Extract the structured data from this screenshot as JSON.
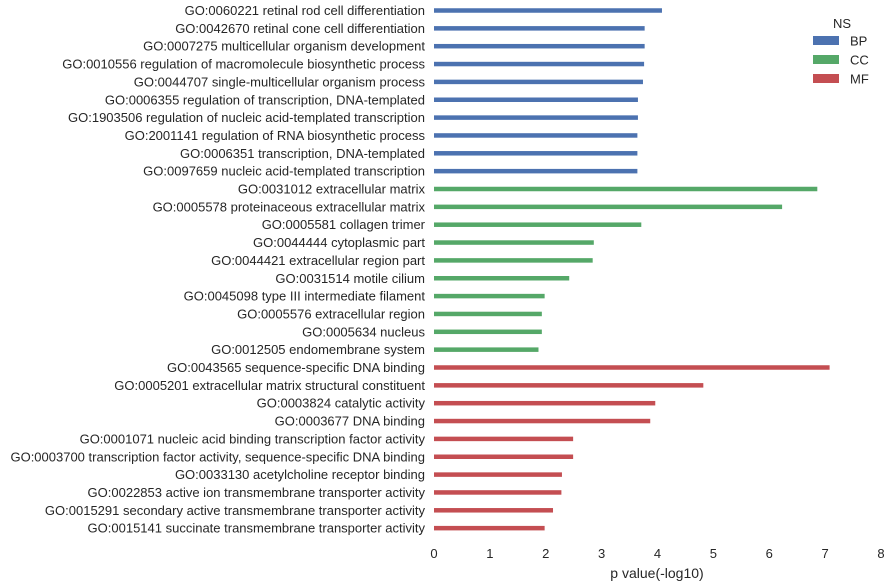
{
  "chart_data": {
    "type": "bar",
    "orientation": "horizontal",
    "xlabel": "p value(-log10)",
    "xlim": [
      0,
      8
    ],
    "xticks": [
      0,
      1,
      2,
      3,
      4,
      5,
      6,
      7,
      8
    ],
    "grid": false,
    "legend": {
      "title": "NS",
      "placement": "top-right",
      "entries": [
        {
          "name": "BP",
          "color": "#4c72b0"
        },
        {
          "name": "CC",
          "color": "#55a868"
        },
        {
          "name": "MF",
          "color": "#c44e52"
        }
      ]
    },
    "bars": [
      {
        "label": "GO:0060221 retinal rod cell differentiation",
        "value": 4.08,
        "ns": "BP"
      },
      {
        "label": "GO:0042670 retinal cone cell differentiation",
        "value": 3.77,
        "ns": "BP"
      },
      {
        "label": "GO:0007275 multicellular organism development",
        "value": 3.77,
        "ns": "BP"
      },
      {
        "label": "GO:0010556 regulation of macromolecule biosynthetic process",
        "value": 3.76,
        "ns": "BP"
      },
      {
        "label": "GO:0044707 single-multicellular organism process",
        "value": 3.74,
        "ns": "BP"
      },
      {
        "label": "GO:0006355 regulation of transcription, DNA-templated",
        "value": 3.65,
        "ns": "BP"
      },
      {
        "label": "GO:1903506 regulation of nucleic acid-templated transcription",
        "value": 3.65,
        "ns": "BP"
      },
      {
        "label": "GO:2001141 regulation of RNA biosynthetic process",
        "value": 3.64,
        "ns": "BP"
      },
      {
        "label": "GO:0006351 transcription, DNA-templated",
        "value": 3.64,
        "ns": "BP"
      },
      {
        "label": "GO:0097659 nucleic acid-templated transcription",
        "value": 3.64,
        "ns": "BP"
      },
      {
        "label": "GO:0031012 extracellular matrix",
        "value": 6.86,
        "ns": "CC"
      },
      {
        "label": "GO:0005578 proteinaceous extracellular matrix",
        "value": 6.23,
        "ns": "CC"
      },
      {
        "label": "GO:0005581 collagen trimer",
        "value": 3.71,
        "ns": "CC"
      },
      {
        "label": "GO:0044444 cytoplasmic part",
        "value": 2.86,
        "ns": "CC"
      },
      {
        "label": "GO:0044421 extracellular region part",
        "value": 2.84,
        "ns": "CC"
      },
      {
        "label": "GO:0031514 motile cilium",
        "value": 2.42,
        "ns": "CC"
      },
      {
        "label": "GO:0045098 type III intermediate filament",
        "value": 1.98,
        "ns": "CC"
      },
      {
        "label": "GO:0005576 extracellular region",
        "value": 1.93,
        "ns": "CC"
      },
      {
        "label": "GO:0005634 nucleus",
        "value": 1.93,
        "ns": "CC"
      },
      {
        "label": "GO:0012505 endomembrane system",
        "value": 1.87,
        "ns": "CC"
      },
      {
        "label": "GO:0043565 sequence-specific DNA binding",
        "value": 7.08,
        "ns": "MF"
      },
      {
        "label": "GO:0005201 extracellular matrix structural constituent",
        "value": 4.82,
        "ns": "MF"
      },
      {
        "label": "GO:0003824 catalytic activity",
        "value": 3.96,
        "ns": "MF"
      },
      {
        "label": "GO:0003677 DNA binding",
        "value": 3.87,
        "ns": "MF"
      },
      {
        "label": "GO:0001071 nucleic acid binding transcription factor activity",
        "value": 2.49,
        "ns": "MF"
      },
      {
        "label": "GO:0003700 transcription factor activity, sequence-specific DNA binding",
        "value": 2.49,
        "ns": "MF"
      },
      {
        "label": "GO:0033130 acetylcholine receptor binding",
        "value": 2.29,
        "ns": "MF"
      },
      {
        "label": "GO:0022853 active ion transmembrane transporter activity",
        "value": 2.28,
        "ns": "MF"
      },
      {
        "label": "GO:0015291 secondary active transmembrane transporter activity",
        "value": 2.13,
        "ns": "MF"
      },
      {
        "label": "GO:0015141 succinate transmembrane transporter activity",
        "value": 1.98,
        "ns": "MF"
      }
    ]
  }
}
